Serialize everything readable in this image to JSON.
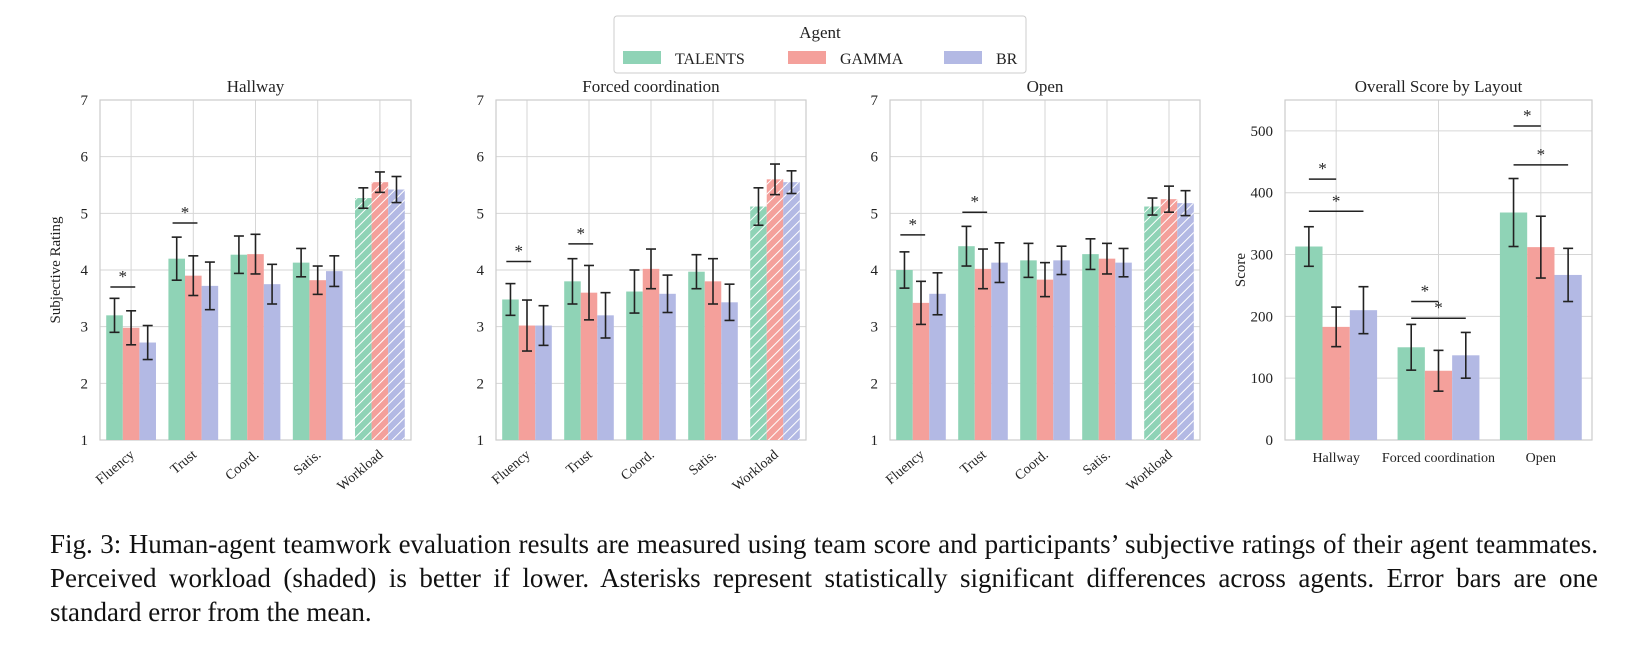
{
  "legend": {
    "title": "Agent",
    "entries": [
      "TALENTS",
      "GAMMA",
      "BR"
    ]
  },
  "colors": {
    "TALENTS": "#8fd3b6",
    "GAMMA": "#f4a09b",
    "BR": "#b3b9e4"
  },
  "caption": "Fig. 3: Human-agent teamwork evaluation results are measured using team score and participants’ subjective ratings of their agent teammates. Perceived workload (shaded) is better if lower. Asterisks represent statistically significant differences across agents. Error bars are one standard error from the mean.",
  "chart_data": [
    {
      "type": "bar",
      "title": "Hallway",
      "ylabel": "Subjective Rating",
      "xlabel": "",
      "ylim": [
        1,
        7
      ],
      "yticks": [
        1,
        2,
        3,
        4,
        5,
        6,
        7
      ],
      "categories": [
        "Fluency",
        "Trust",
        "Coord.",
        "Satis.",
        "Workload"
      ],
      "hatched": [
        "Workload"
      ],
      "series": [
        {
          "name": "TALENTS",
          "values": [
            3.2,
            4.2,
            4.27,
            4.13,
            5.27
          ],
          "errors": [
            0.3,
            0.38,
            0.33,
            0.25,
            0.18
          ]
        },
        {
          "name": "GAMMA",
          "values": [
            2.98,
            3.9,
            4.28,
            3.82,
            5.55
          ],
          "errors": [
            0.3,
            0.35,
            0.35,
            0.25,
            0.18
          ]
        },
        {
          "name": "BR",
          "values": [
            2.72,
            3.72,
            3.75,
            3.98,
            5.42
          ],
          "errors": [
            0.3,
            0.42,
            0.35,
            0.27,
            0.23
          ]
        }
      ],
      "significance": [
        {
          "category": "Fluency",
          "y": 3.7,
          "label": "*"
        },
        {
          "category": "Trust",
          "y": 4.83,
          "label": "*"
        }
      ]
    },
    {
      "type": "bar",
      "title": "Forced coordination",
      "ylabel": "",
      "xlabel": "",
      "ylim": [
        1,
        7
      ],
      "yticks": [
        1,
        2,
        3,
        4,
        5,
        6,
        7
      ],
      "categories": [
        "Fluency",
        "Trust",
        "Coord.",
        "Satis.",
        "Workload"
      ],
      "hatched": [
        "Workload"
      ],
      "series": [
        {
          "name": "TALENTS",
          "values": [
            3.48,
            3.8,
            3.62,
            3.97,
            5.12
          ],
          "errors": [
            0.28,
            0.4,
            0.38,
            0.3,
            0.33
          ]
        },
        {
          "name": "GAMMA",
          "values": [
            3.02,
            3.6,
            4.02,
            3.8,
            5.6
          ],
          "errors": [
            0.45,
            0.48,
            0.35,
            0.4,
            0.27
          ]
        },
        {
          "name": "BR",
          "values": [
            3.02,
            3.2,
            3.58,
            3.43,
            5.55
          ],
          "errors": [
            0.35,
            0.4,
            0.33,
            0.32,
            0.2
          ]
        }
      ],
      "significance": [
        {
          "category": "Fluency",
          "y": 4.15,
          "label": "*"
        },
        {
          "category": "Trust",
          "y": 4.46,
          "label": "*"
        }
      ]
    },
    {
      "type": "bar",
      "title": "Open",
      "ylabel": "",
      "xlabel": "",
      "ylim": [
        1,
        7
      ],
      "yticks": [
        1,
        2,
        3,
        4,
        5,
        6,
        7
      ],
      "categories": [
        "Fluency",
        "Trust",
        "Coord.",
        "Satis.",
        "Workload"
      ],
      "hatched": [
        "Workload"
      ],
      "series": [
        {
          "name": "TALENTS",
          "values": [
            4.0,
            4.42,
            4.17,
            4.28,
            5.12
          ],
          "errors": [
            0.32,
            0.35,
            0.3,
            0.27,
            0.15
          ]
        },
        {
          "name": "GAMMA",
          "values": [
            3.42,
            4.02,
            3.83,
            4.2,
            5.25
          ],
          "errors": [
            0.38,
            0.35,
            0.3,
            0.27,
            0.23
          ]
        },
        {
          "name": "BR",
          "values": [
            3.58,
            4.13,
            4.17,
            4.13,
            5.18
          ],
          "errors": [
            0.37,
            0.35,
            0.25,
            0.25,
            0.22
          ]
        }
      ],
      "significance": [
        {
          "category": "Fluency",
          "y": 4.62,
          "label": "*"
        },
        {
          "category": "Trust",
          "y": 5.02,
          "label": "*"
        }
      ]
    },
    {
      "type": "bar",
      "title": "Overall Score by Layout",
      "ylabel": "Score",
      "xlabel": "",
      "ylim": [
        0,
        550
      ],
      "yticks": [
        0,
        100,
        200,
        300,
        400,
        500
      ],
      "categories": [
        "Hallway",
        "Forced coordination",
        "Open"
      ],
      "hatched": [],
      "series": [
        {
          "name": "TALENTS",
          "values": [
            313,
            150,
            368
          ],
          "errors": [
            32,
            37,
            55
          ]
        },
        {
          "name": "GAMMA",
          "values": [
            183,
            112,
            312
          ],
          "errors": [
            32,
            33,
            50
          ]
        },
        {
          "name": "BR",
          "values": [
            210,
            137,
            267
          ],
          "errors": [
            38,
            37,
            43
          ]
        }
      ],
      "significance": [
        {
          "category": "Hallway",
          "y": 422,
          "span": [
            "TALENTS",
            "GAMMA"
          ],
          "label": "*"
        },
        {
          "category": "Hallway",
          "y": 370,
          "span": [
            "TALENTS",
            "BR"
          ],
          "label": "*"
        },
        {
          "category": "Forced coordination",
          "y": 224,
          "span": [
            "TALENTS",
            "GAMMA"
          ],
          "label": "*"
        },
        {
          "category": "Forced coordination",
          "y": 197,
          "span": [
            "TALENTS",
            "BR"
          ],
          "label": "*"
        },
        {
          "category": "Open",
          "y": 508,
          "span": [
            "TALENTS",
            "GAMMA"
          ],
          "label": "*"
        },
        {
          "category": "Open",
          "y": 445,
          "span": [
            "TALENTS",
            "BR"
          ],
          "label": "*"
        }
      ]
    }
  ]
}
